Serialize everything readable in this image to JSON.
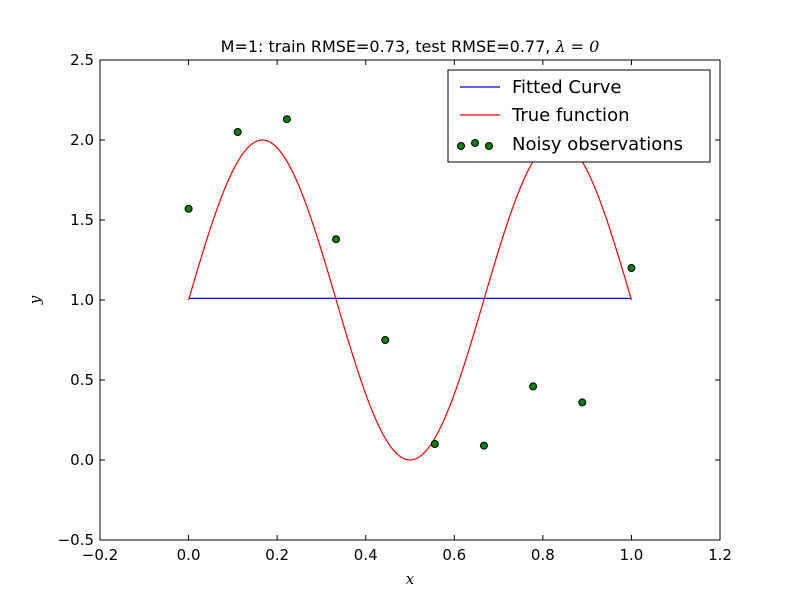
{
  "chart_data": {
    "type": "line",
    "title_text": "M=1: train RMSE=0.73, test RMSE=0.77, ",
    "title_math": "λ = 0",
    "xlabel": "x",
    "ylabel": "y",
    "xlim": [
      -0.2,
      1.2
    ],
    "ylim": [
      -0.5,
      2.5
    ],
    "xticks": [
      -0.2,
      0.0,
      0.2,
      0.4,
      0.6,
      0.8,
      1.0,
      1.2
    ],
    "xtick_labels": [
      "−0.2",
      "0.0",
      "0.2",
      "0.4",
      "0.6",
      "0.8",
      "1.0",
      "1.2"
    ],
    "yticks": [
      -0.5,
      0.0,
      0.5,
      1.0,
      1.5,
      2.0,
      2.5
    ],
    "ytick_labels": [
      "−0.5",
      "0.0",
      "0.5",
      "1.0",
      "1.5",
      "2.0",
      "2.5"
    ],
    "grid": false,
    "legend_position": "top-right",
    "series": [
      {
        "name": "Fitted Curve",
        "kind": "line",
        "color": "#0000ff",
        "x": [
          0.0,
          1.0
        ],
        "y": [
          1.01,
          1.01
        ]
      },
      {
        "name": "True function",
        "kind": "line",
        "color": "#ff0000",
        "function": "1 + sin(3*pi*x)",
        "x_range": [
          0.0,
          1.0
        ]
      },
      {
        "name": "Noisy observations",
        "kind": "scatter",
        "color": "#007f00",
        "edge_color": "#000000",
        "x": [
          0.0,
          0.111,
          0.222,
          0.333,
          0.444,
          0.556,
          0.667,
          0.778,
          0.889,
          1.0
        ],
        "y": [
          1.57,
          2.05,
          2.13,
          1.38,
          0.75,
          0.1,
          0.09,
          0.46,
          0.36,
          1.2
        ]
      }
    ]
  }
}
